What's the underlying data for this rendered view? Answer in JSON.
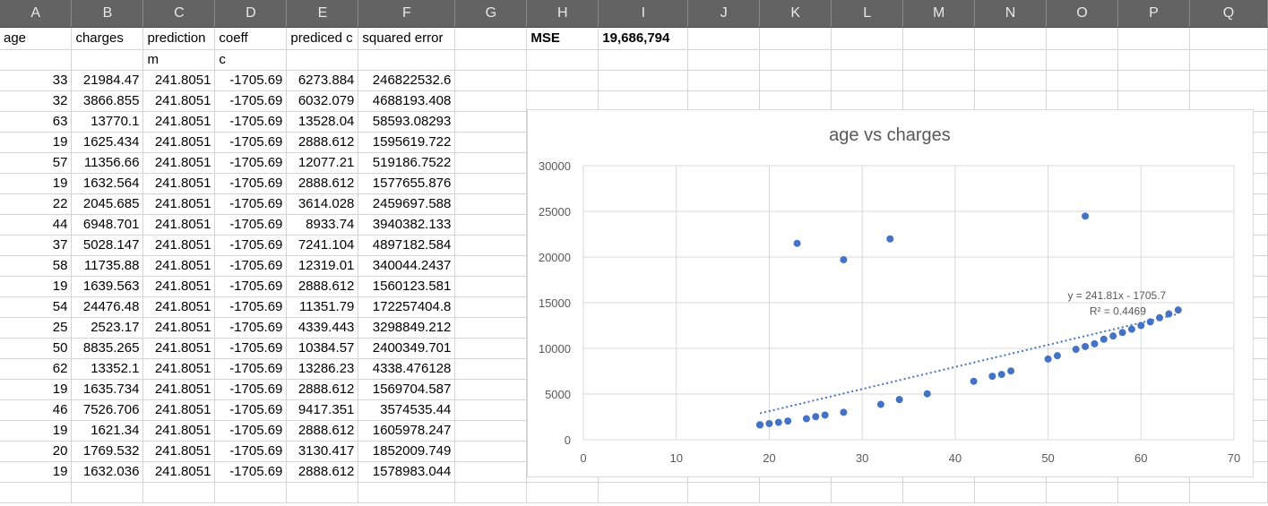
{
  "columns": [
    "A",
    "B",
    "C",
    "D",
    "E",
    "F",
    "G",
    "H",
    "I",
    "J",
    "K",
    "L",
    "M",
    "N",
    "O",
    "P",
    "Q"
  ],
  "header_row": [
    "age",
    "charges",
    "prediction",
    "coeff",
    "prediced c",
    "squared error",
    "",
    "MSE",
    "19,686,794"
  ],
  "param_row": [
    "",
    "",
    "m",
    "c"
  ],
  "rows": [
    [
      "33",
      "21984.47",
      "241.8051",
      "-1705.69",
      "6273.884",
      "246822532.6"
    ],
    [
      "32",
      "3866.855",
      "241.8051",
      "-1705.69",
      "6032.079",
      "4688193.408"
    ],
    [
      "63",
      "13770.1",
      "241.8051",
      "-1705.69",
      "13528.04",
      "58593.08293"
    ],
    [
      "19",
      "1625.434",
      "241.8051",
      "-1705.69",
      "2888.612",
      "1595619.722"
    ],
    [
      "57",
      "11356.66",
      "241.8051",
      "-1705.69",
      "12077.21",
      "519186.7522"
    ],
    [
      "19",
      "1632.564",
      "241.8051",
      "-1705.69",
      "2888.612",
      "1577655.876"
    ],
    [
      "22",
      "2045.685",
      "241.8051",
      "-1705.69",
      "3614.028",
      "2459697.588"
    ],
    [
      "44",
      "6948.701",
      "241.8051",
      "-1705.69",
      "8933.74",
      "3940382.133"
    ],
    [
      "37",
      "5028.147",
      "241.8051",
      "-1705.69",
      "7241.104",
      "4897182.584"
    ],
    [
      "58",
      "11735.88",
      "241.8051",
      "-1705.69",
      "12319.01",
      "340044.2437"
    ],
    [
      "19",
      "1639.563",
      "241.8051",
      "-1705.69",
      "2888.612",
      "1560123.581"
    ],
    [
      "54",
      "24476.48",
      "241.8051",
      "-1705.69",
      "11351.79",
      "172257404.8"
    ],
    [
      "25",
      "2523.17",
      "241.8051",
      "-1705.69",
      "4339.443",
      "3298849.212"
    ],
    [
      "50",
      "8835.265",
      "241.8051",
      "-1705.69",
      "10384.57",
      "2400349.701"
    ],
    [
      "62",
      "13352.1",
      "241.8051",
      "-1705.69",
      "13286.23",
      "4338.476128"
    ],
    [
      "19",
      "1635.734",
      "241.8051",
      "-1705.69",
      "2888.612",
      "1569704.587"
    ],
    [
      "46",
      "7526.706",
      "241.8051",
      "-1705.69",
      "9417.351",
      "3574535.44"
    ],
    [
      "19",
      "1621.34",
      "241.8051",
      "-1705.69",
      "2888.612",
      "1605978.247"
    ],
    [
      "20",
      "1769.532",
      "241.8051",
      "-1705.69",
      "3130.417",
      "1852009.749"
    ],
    [
      "19",
      "1632.036",
      "241.8051",
      "-1705.69",
      "2888.612",
      "1578983.044"
    ]
  ],
  "colors": {
    "header_bg": "#636363",
    "point": "#4472c4",
    "gridline": "#d9d9d9"
  },
  "chart_data": {
    "type": "scatter",
    "title": "age vs charges",
    "xlim": [
      0,
      70
    ],
    "ylim": [
      0,
      30000
    ],
    "x_ticks": [
      0,
      10,
      20,
      30,
      40,
      50,
      60,
      70
    ],
    "y_ticks": [
      0,
      5000,
      10000,
      15000,
      20000,
      25000,
      30000
    ],
    "grid": true,
    "points": [
      [
        19,
        1622
      ],
      [
        19,
        1632
      ],
      [
        19,
        1636
      ],
      [
        19,
        1640
      ],
      [
        20,
        1770
      ],
      [
        21,
        1900
      ],
      [
        22,
        2046
      ],
      [
        23,
        21500
      ],
      [
        24,
        2300
      ],
      [
        25,
        2523
      ],
      [
        26,
        2700
      ],
      [
        28,
        3000
      ],
      [
        28,
        19700
      ],
      [
        32,
        3867
      ],
      [
        33,
        21984
      ],
      [
        34,
        4400
      ],
      [
        37,
        5028
      ],
      [
        42,
        6400
      ],
      [
        44,
        6949
      ],
      [
        45,
        7150
      ],
      [
        46,
        7527
      ],
      [
        50,
        8835
      ],
      [
        51,
        9200
      ],
      [
        53,
        9900
      ],
      [
        54,
        10200
      ],
      [
        54,
        24476
      ],
      [
        55,
        10500
      ],
      [
        56,
        11000
      ],
      [
        57,
        11357
      ],
      [
        58,
        11736
      ],
      [
        59,
        12100
      ],
      [
        60,
        12500
      ],
      [
        61,
        12900
      ],
      [
        62,
        13352
      ],
      [
        63,
        13770
      ],
      [
        64,
        14200
      ]
    ],
    "trendline": {
      "type": "linear",
      "x_range": [
        19,
        64
      ],
      "slope": 241.81,
      "intercept": -1705.7,
      "equation": "y = 241.81x - 1705.7",
      "r2": "R² = 0.4469"
    }
  }
}
